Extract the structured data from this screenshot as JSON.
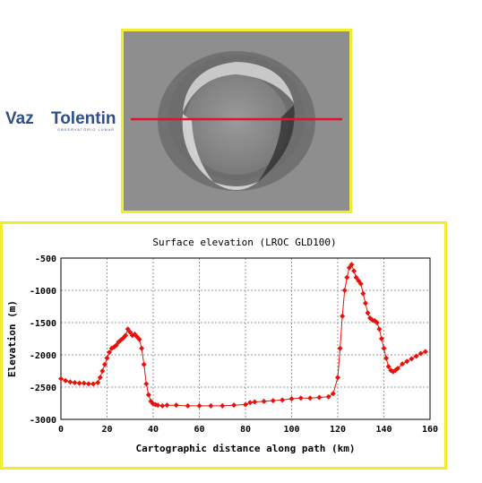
{
  "logo": {
    "name_part1": "Vaz",
    "name_part2": "Tolentino",
    "tagline": "OBSERVATÓRIO LUNAR",
    "color": "#2f4f86"
  },
  "photo": {
    "subject": "crater-image",
    "profile_line_color": "#e8102a"
  },
  "frame_color": "#f2ec2e",
  "chart_data": {
    "type": "line",
    "title": "Surface elevation (LROC GLD100)",
    "xlabel": "Cartographic distance along path (km)",
    "ylabel": "Elevation (m)",
    "xlim": [
      0,
      160
    ],
    "ylim": [
      -3000,
      -500
    ],
    "xticks": [
      0,
      20,
      40,
      60,
      80,
      100,
      120,
      140,
      160
    ],
    "yticks": [
      -500,
      -1000,
      -1500,
      -2000,
      -2500,
      -3000
    ],
    "grid": true,
    "marker": "diamond",
    "color": "#e8120c",
    "series": [
      {
        "x": [
          0,
          2,
          4,
          6,
          8,
          10,
          12,
          14,
          16,
          17,
          18,
          19,
          20,
          21,
          22,
          23,
          24,
          25,
          26,
          27,
          28,
          29,
          30,
          31,
          32,
          33,
          34,
          35,
          36,
          37,
          38,
          39,
          40,
          41,
          42,
          44,
          46,
          50,
          55,
          60,
          65,
          70,
          75,
          80,
          82,
          84,
          88,
          92,
          96,
          100,
          104,
          108,
          112,
          116,
          118,
          120,
          121,
          122,
          123,
          124,
          125,
          126,
          127,
          128,
          129,
          130,
          131,
          132,
          133,
          134,
          135,
          136,
          137,
          138,
          139,
          140,
          141,
          142,
          143,
          144,
          145,
          146,
          148,
          150,
          152,
          154,
          156,
          158
        ],
        "y": [
          -2370,
          -2400,
          -2420,
          -2430,
          -2440,
          -2440,
          -2450,
          -2450,
          -2430,
          -2350,
          -2250,
          -2150,
          -2050,
          -1960,
          -1900,
          -1880,
          -1850,
          -1800,
          -1770,
          -1740,
          -1700,
          -1600,
          -1650,
          -1700,
          -1680,
          -1720,
          -1760,
          -1900,
          -2150,
          -2450,
          -2620,
          -2720,
          -2760,
          -2770,
          -2780,
          -2790,
          -2780,
          -2780,
          -2790,
          -2790,
          -2790,
          -2790,
          -2780,
          -2770,
          -2740,
          -2730,
          -2720,
          -2710,
          -2700,
          -2680,
          -2670,
          -2670,
          -2660,
          -2650,
          -2600,
          -2350,
          -1900,
          -1400,
          -1000,
          -800,
          -650,
          -600,
          -700,
          -800,
          -850,
          -900,
          -1050,
          -1200,
          -1350,
          -1430,
          -1460,
          -1470,
          -1500,
          -1600,
          -1750,
          -1900,
          -2050,
          -2180,
          -2240,
          -2260,
          -2240,
          -2210,
          -2140,
          -2100,
          -2060,
          -2020,
          -1980,
          -1950
        ]
      }
    ]
  }
}
